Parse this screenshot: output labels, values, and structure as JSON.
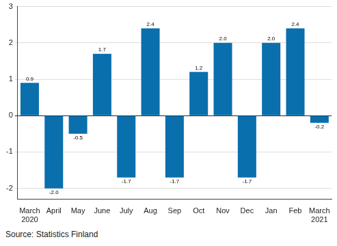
{
  "chart_data": {
    "type": "bar",
    "source": "Source: Statistics Finland",
    "categories": [
      "March 2020",
      "April",
      "May",
      "June",
      "July",
      "Aug",
      "Sep",
      "Oct",
      "Nov",
      "Dec",
      "Jan",
      "Feb",
      "March 2021"
    ],
    "values": [
      0.9,
      -2.0,
      -0.5,
      1.7,
      -1.7,
      2.4,
      -1.7,
      1.2,
      2.0,
      -1.7,
      2.0,
      2.4,
      -0.2
    ],
    "value_labels": [
      "0.9",
      "-2.0",
      "-0.5",
      "1.7",
      "-1.7",
      "2.4",
      "-1.7",
      "1.2",
      "2.0",
      "-1.7",
      "2.0",
      "2.4",
      "-0.2"
    ],
    "color": "#0a6fad",
    "ylim": [
      -2.3,
      3
    ],
    "yticks": [
      -2,
      -1,
      0,
      1,
      2,
      3
    ],
    "grid": true,
    "data_labels": true
  }
}
